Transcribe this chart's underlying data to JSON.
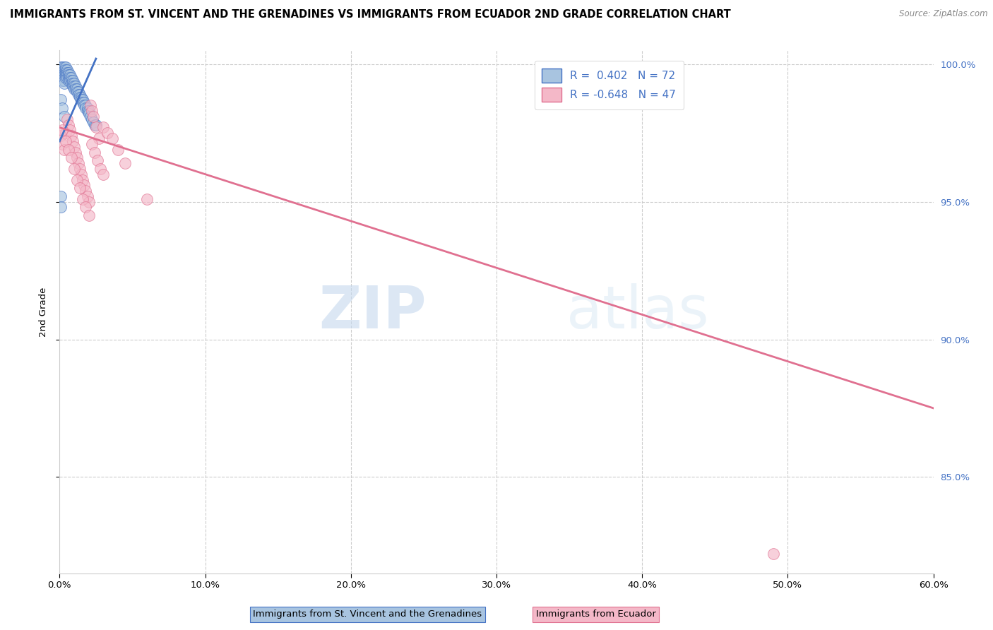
{
  "title": "IMMIGRANTS FROM ST. VINCENT AND THE GRENADINES VS IMMIGRANTS FROM ECUADOR 2ND GRADE CORRELATION CHART",
  "source": "Source: ZipAtlas.com",
  "ylabel": "2nd Grade",
  "yaxis_ticks": [
    "100.0%",
    "95.0%",
    "90.0%",
    "85.0%"
  ],
  "yaxis_values": [
    1.0,
    0.95,
    0.9,
    0.85
  ],
  "legend_blue_label": "Immigrants from St. Vincent and the Grenadines",
  "legend_pink_label": "Immigrants from Ecuador",
  "legend_R_blue": "R =  0.402",
  "legend_N_blue": "N = 72",
  "legend_R_pink": "R = -0.648",
  "legend_N_pink": "N = 47",
  "watermark_zip": "ZIP",
  "watermark_atlas": "atlas",
  "blue_fill": "#a8c4e0",
  "blue_edge": "#4472c4",
  "pink_fill": "#f4b8c8",
  "pink_edge": "#e07090",
  "right_axis_color": "#4472c4",
  "grid_color": "#cccccc",
  "scatter_blue_x": [
    0.001,
    0.001,
    0.001,
    0.001,
    0.002,
    0.002,
    0.002,
    0.002,
    0.002,
    0.002,
    0.003,
    0.003,
    0.003,
    0.003,
    0.003,
    0.003,
    0.003,
    0.004,
    0.004,
    0.004,
    0.004,
    0.004,
    0.005,
    0.005,
    0.005,
    0.005,
    0.006,
    0.006,
    0.006,
    0.006,
    0.007,
    0.007,
    0.007,
    0.008,
    0.008,
    0.008,
    0.009,
    0.009,
    0.009,
    0.01,
    0.01,
    0.01,
    0.011,
    0.011,
    0.012,
    0.012,
    0.013,
    0.013,
    0.014,
    0.014,
    0.015,
    0.015,
    0.016,
    0.016,
    0.017,
    0.017,
    0.018,
    0.018,
    0.019,
    0.019,
    0.02,
    0.02,
    0.021,
    0.022,
    0.023,
    0.024,
    0.001,
    0.002,
    0.003,
    0.025,
    0.001,
    0.001
  ],
  "scatter_blue_y": [
    0.999,
    0.998,
    0.997,
    0.996,
    0.999,
    0.998,
    0.997,
    0.996,
    0.995,
    0.994,
    0.999,
    0.998,
    0.997,
    0.996,
    0.995,
    0.994,
    0.993,
    0.999,
    0.998,
    0.997,
    0.996,
    0.995,
    0.998,
    0.997,
    0.996,
    0.995,
    0.997,
    0.996,
    0.995,
    0.994,
    0.996,
    0.995,
    0.994,
    0.995,
    0.994,
    0.993,
    0.994,
    0.993,
    0.992,
    0.993,
    0.992,
    0.991,
    0.992,
    0.991,
    0.991,
    0.99,
    0.99,
    0.989,
    0.989,
    0.988,
    0.988,
    0.987,
    0.987,
    0.986,
    0.986,
    0.985,
    0.985,
    0.984,
    0.984,
    0.983,
    0.983,
    0.982,
    0.981,
    0.98,
    0.979,
    0.978,
    0.987,
    0.984,
    0.981,
    0.978,
    0.952,
    0.948
  ],
  "scatter_pink_x": [
    0.001,
    0.002,
    0.003,
    0.004,
    0.005,
    0.006,
    0.007,
    0.008,
    0.009,
    0.01,
    0.011,
    0.012,
    0.013,
    0.014,
    0.015,
    0.016,
    0.017,
    0.018,
    0.019,
    0.02,
    0.021,
    0.022,
    0.023,
    0.025,
    0.027,
    0.03,
    0.033,
    0.036,
    0.04,
    0.045,
    0.002,
    0.004,
    0.006,
    0.008,
    0.01,
    0.012,
    0.014,
    0.016,
    0.018,
    0.02,
    0.022,
    0.024,
    0.026,
    0.028,
    0.03,
    0.06,
    0.49
  ],
  "scatter_pink_y": [
    0.974,
    0.971,
    0.969,
    0.975,
    0.98,
    0.978,
    0.976,
    0.974,
    0.972,
    0.97,
    0.968,
    0.966,
    0.964,
    0.962,
    0.96,
    0.958,
    0.956,
    0.954,
    0.952,
    0.95,
    0.985,
    0.983,
    0.981,
    0.977,
    0.973,
    0.977,
    0.975,
    0.973,
    0.969,
    0.964,
    0.976,
    0.972,
    0.969,
    0.966,
    0.962,
    0.958,
    0.955,
    0.951,
    0.948,
    0.945,
    0.971,
    0.968,
    0.965,
    0.962,
    0.96,
    0.951,
    0.822
  ],
  "blue_trendline_x": [
    0.0,
    0.025
  ],
  "blue_trendline_y": [
    0.972,
    1.002
  ],
  "pink_trendline_x": [
    0.0,
    0.6
  ],
  "pink_trendline_y": [
    0.977,
    0.875
  ],
  "xlim": [
    0.0,
    0.6
  ],
  "ylim": [
    0.815,
    1.005
  ],
  "xticks": [
    0.0,
    0.1,
    0.2,
    0.3,
    0.4,
    0.5,
    0.6
  ],
  "xticklabels": [
    "0.0%",
    "10.0%",
    "20.0%",
    "30.0%",
    "40.0%",
    "50.0%",
    "60.0%"
  ]
}
